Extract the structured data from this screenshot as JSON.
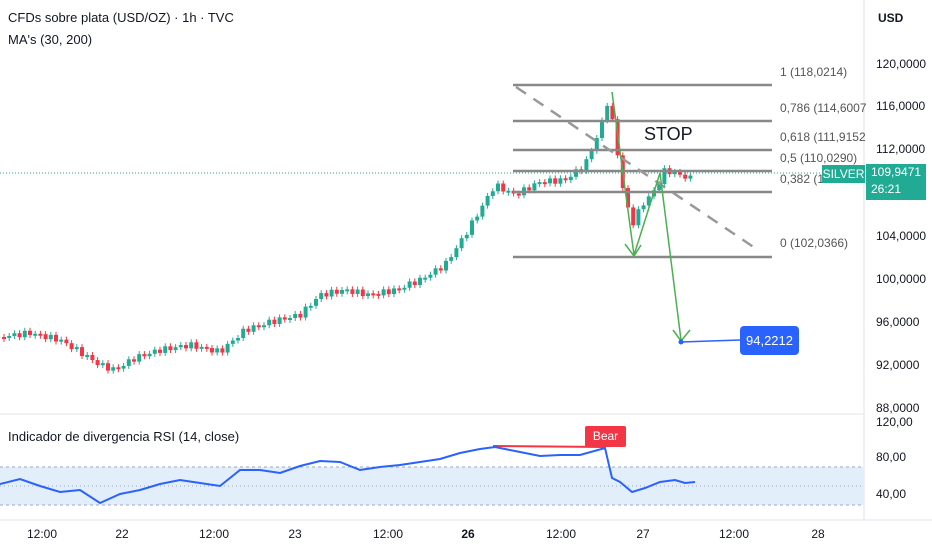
{
  "legend": {
    "title": "CFDs sobre plata (USD/OZ) · 1h · TVC",
    "ma": "MA's (30, 200)",
    "rsi": "Indicador de divergencia RSI (14, close)"
  },
  "price_axis": {
    "currency": "USD",
    "labels": [
      "120,0000",
      "116,0000",
      "112,0000",
      "104,0000",
      "100,0000",
      "96,0000",
      "92,0000",
      "88,0000"
    ]
  },
  "rsi_axis": {
    "labels": [
      "120,00",
      "80,00",
      "40,00"
    ]
  },
  "time_axis": {
    "labels": [
      "12:00",
      "22",
      "12:00",
      "23",
      "12:00",
      "26",
      "12:00",
      "27",
      "12:00",
      "28"
    ]
  },
  "current_price": {
    "symbol": "SILVER",
    "price": "109,9471",
    "countdown": "26:21"
  },
  "target": {
    "value": "94,2212"
  },
  "annotations": {
    "stop": "STOP",
    "bear": "Bear"
  },
  "fib_levels": [
    {
      "label": "1 (118,0214)"
    },
    {
      "label": "0,786 (114,6007"
    },
    {
      "label": "0,618 (111,9152"
    },
    {
      "label": "0,5 (110,0290)"
    },
    {
      "label": "0,382 (1"
    },
    {
      "label": "0 (102,0366)"
    }
  ],
  "colors": {
    "up": "#22ab94",
    "down": "#f23645",
    "rsi_line": "#2962ff",
    "arrow": "#4caf50",
    "fib": "#888888"
  }
}
